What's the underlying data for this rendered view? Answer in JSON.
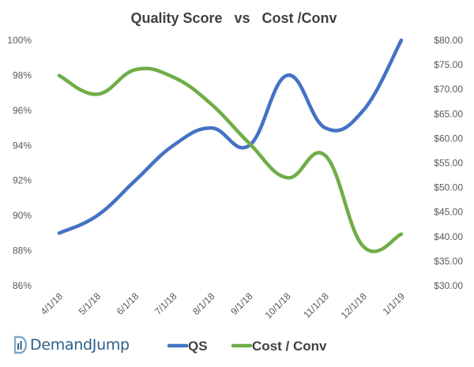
{
  "chart_data": {
    "type": "line",
    "title": "Quality Score   vs   Cost /Conv",
    "categories": [
      "4/1/18",
      "5/1/18",
      "6/1/18",
      "7/1/18",
      "8/1/18",
      "9/1/18",
      "10/1/18",
      "11/1/18",
      "12/1/18",
      "1/1/19"
    ],
    "y_left": {
      "min": 86,
      "max": 100,
      "step": 2,
      "ticks": [
        "86%",
        "88%",
        "90%",
        "92%",
        "94%",
        "96%",
        "98%",
        "100%"
      ]
    },
    "y_right": {
      "min": 30,
      "max": 80,
      "step": 5,
      "ticks": [
        "$30.00",
        "$35.00",
        "$40.00",
        "$45.00",
        "$50.00",
        "$55.00",
        "$60.00",
        "$65.00",
        "$70.00",
        "$75.00",
        "$80.00"
      ]
    },
    "series": [
      {
        "name": "QS",
        "axis": "left",
        "color": "#4472c4",
        "values": [
          89,
          90,
          92,
          94,
          95,
          94,
          98,
          95,
          96,
          100
        ]
      },
      {
        "name": "Cost / Conv",
        "axis": "right",
        "color": "#70ad47",
        "values": [
          72.8,
          69,
          74,
          72.5,
          67,
          59,
          52,
          56.5,
          38,
          40.5
        ]
      }
    ],
    "legend_position": "bottom",
    "grid": false
  },
  "branding": {
    "logo_text": "DemandJump"
  }
}
